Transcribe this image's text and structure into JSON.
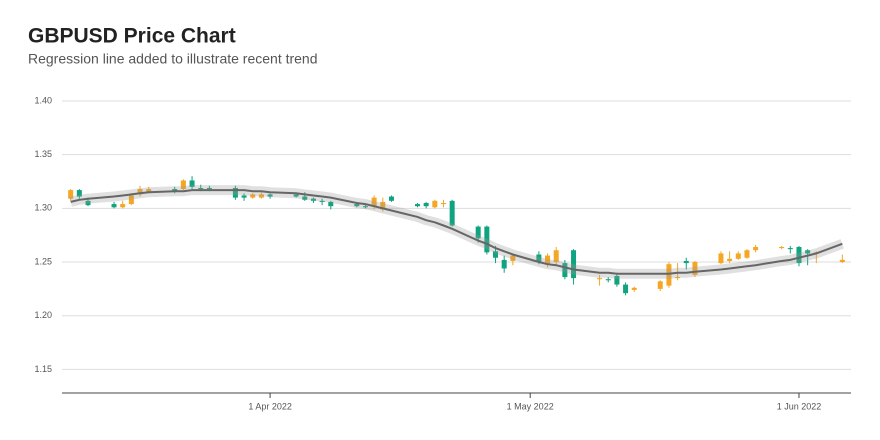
{
  "chart_data": {
    "type": "candlestick",
    "title": "GBPUSD Price Chart",
    "subtitle": "Regression line added to illustrate recent trend",
    "x": [
      "2022-03-09",
      "2022-03-10",
      "2022-03-11",
      "2022-03-14",
      "2022-03-15",
      "2022-03-16",
      "2022-03-17",
      "2022-03-18",
      "2022-03-21",
      "2022-03-22",
      "2022-03-23",
      "2022-03-24",
      "2022-03-25",
      "2022-03-28",
      "2022-03-29",
      "2022-03-30",
      "2022-03-31",
      "2022-04-01",
      "2022-04-04",
      "2022-04-05",
      "2022-04-06",
      "2022-04-07",
      "2022-04-08",
      "2022-04-11",
      "2022-04-12",
      "2022-04-13",
      "2022-04-14",
      "2022-04-15",
      "2022-04-18",
      "2022-04-19",
      "2022-04-20",
      "2022-04-21",
      "2022-04-22",
      "2022-04-25",
      "2022-04-26",
      "2022-04-27",
      "2022-04-28",
      "2022-04-29",
      "2022-05-02",
      "2022-05-03",
      "2022-05-04",
      "2022-05-05",
      "2022-05-06",
      "2022-05-09",
      "2022-05-10",
      "2022-05-11",
      "2022-05-12",
      "2022-05-13",
      "2022-05-16",
      "2022-05-17",
      "2022-05-18",
      "2022-05-19",
      "2022-05-20",
      "2022-05-23",
      "2022-05-24",
      "2022-05-25",
      "2022-05-26",
      "2022-05-27",
      "2022-05-30",
      "2022-05-31",
      "2022-06-01",
      "2022-06-02",
      "2022-06-03",
      "2022-06-06"
    ],
    "open": [
      1.309,
      1.317,
      1.307,
      1.304,
      1.301,
      1.304,
      1.313,
      1.315,
      1.318,
      1.318,
      1.326,
      1.319,
      1.319,
      1.319,
      1.312,
      1.31,
      1.31,
      1.313,
      1.313,
      1.311,
      1.309,
      1.307,
      1.306,
      1.304,
      1.302,
      1.302,
      1.299,
      1.311,
      1.304,
      1.305,
      1.301,
      1.304,
      1.307,
      1.283,
      1.283,
      1.26,
      1.252,
      1.251,
      1.257,
      1.248,
      1.25,
      1.249,
      1.261,
      1.234,
      1.234,
      1.237,
      1.229,
      1.224,
      1.225,
      1.228,
      1.235,
      1.251,
      1.238,
      1.249,
      1.251,
      1.253,
      1.254,
      1.261,
      1.263,
      1.263,
      1.264,
      1.261,
      1.258,
      1.25
    ],
    "high": [
      1.318,
      1.318,
      1.31,
      1.306,
      1.307,
      1.314,
      1.321,
      1.32,
      1.32,
      1.327,
      1.33,
      1.322,
      1.321,
      1.321,
      1.314,
      1.314,
      1.315,
      1.314,
      1.314,
      1.315,
      1.31,
      1.309,
      1.307,
      1.305,
      1.304,
      1.312,
      1.31,
      1.312,
      1.305,
      1.306,
      1.308,
      1.308,
      1.308,
      1.284,
      1.284,
      1.265,
      1.256,
      1.258,
      1.26,
      1.258,
      1.264,
      1.252,
      1.262,
      1.238,
      1.236,
      1.24,
      1.231,
      1.227,
      1.233,
      1.25,
      1.249,
      1.254,
      1.251,
      1.26,
      1.26,
      1.26,
      1.262,
      1.266,
      1.265,
      1.265,
      1.265,
      1.262,
      1.26,
      1.257
    ],
    "low": [
      1.307,
      1.309,
      1.302,
      1.3,
      1.3,
      1.303,
      1.311,
      1.314,
      1.314,
      1.317,
      1.318,
      1.316,
      1.316,
      1.308,
      1.307,
      1.309,
      1.309,
      1.309,
      1.31,
      1.307,
      1.305,
      1.303,
      1.299,
      1.301,
      1.3,
      1.299,
      1.297,
      1.306,
      1.301,
      1.3,
      1.3,
      1.301,
      1.283,
      1.268,
      1.257,
      1.249,
      1.24,
      1.247,
      1.248,
      1.245,
      1.247,
      1.234,
      1.229,
      1.228,
      1.231,
      1.227,
      1.219,
      1.222,
      1.223,
      1.226,
      1.233,
      1.243,
      1.236,
      1.248,
      1.249,
      1.252,
      1.253,
      1.259,
      1.262,
      1.258,
      1.246,
      1.247,
      1.249,
      1.249
    ],
    "close": [
      1.317,
      1.311,
      1.303,
      1.301,
      1.304,
      1.312,
      1.318,
      1.318,
      1.316,
      1.326,
      1.32,
      1.318,
      1.318,
      1.31,
      1.31,
      1.313,
      1.313,
      1.311,
      1.311,
      1.308,
      1.307,
      1.306,
      1.302,
      1.302,
      1.301,
      1.31,
      1.306,
      1.307,
      1.302,
      1.302,
      1.307,
      1.305,
      1.284,
      1.272,
      1.259,
      1.254,
      1.244,
      1.256,
      1.25,
      1.256,
      1.261,
      1.236,
      1.235,
      1.235,
      1.233,
      1.229,
      1.221,
      1.226,
      1.232,
      1.248,
      1.236,
      1.249,
      1.25,
      1.258,
      1.253,
      1.258,
      1.261,
      1.264,
      1.264,
      1.262,
      1.249,
      1.258,
      1.259,
      1.252
    ],
    "trend": [
      1.306,
      1.308,
      1.309,
      1.311,
      1.312,
      1.313,
      1.314,
      1.315,
      1.316,
      1.316,
      1.317,
      1.317,
      1.317,
      1.317,
      1.317,
      1.316,
      1.316,
      1.315,
      1.314,
      1.313,
      1.312,
      1.311,
      1.31,
      1.305,
      1.304,
      1.302,
      1.3,
      1.298,
      1.292,
      1.289,
      1.287,
      1.284,
      1.281,
      1.27,
      1.267,
      1.263,
      1.26,
      1.257,
      1.25,
      1.248,
      1.247,
      1.245,
      1.243,
      1.24,
      1.24,
      1.239,
      1.239,
      1.239,
      1.239,
      1.239,
      1.24,
      1.24,
      1.241,
      1.243,
      1.244,
      1.245,
      1.246,
      1.247,
      1.251,
      1.252,
      1.254,
      1.256,
      1.258,
      1.267
    ],
    "up_color": "#f5a623",
    "down_color": "#10a37f",
    "trend_color": "#666666",
    "xlim": [
      "2022-03-08",
      "2022-06-07"
    ],
    "xticks": [
      {
        "value": "2022-04-01",
        "label": "1 Apr 2022"
      },
      {
        "value": "2022-05-01",
        "label": "1 May 2022"
      },
      {
        "value": "2022-06-01",
        "label": "1 Jun 2022"
      }
    ],
    "ylim": [
      1.128,
      1.4
    ],
    "yticks": [
      1.15,
      {
        "value": 1.2,
        "label": "1.20"
      },
      1.25,
      {
        "value": 1.3,
        "label": "1.30"
      },
      1.35,
      {
        "value": 1.4,
        "label": "1.40"
      }
    ],
    "grid": true
  }
}
